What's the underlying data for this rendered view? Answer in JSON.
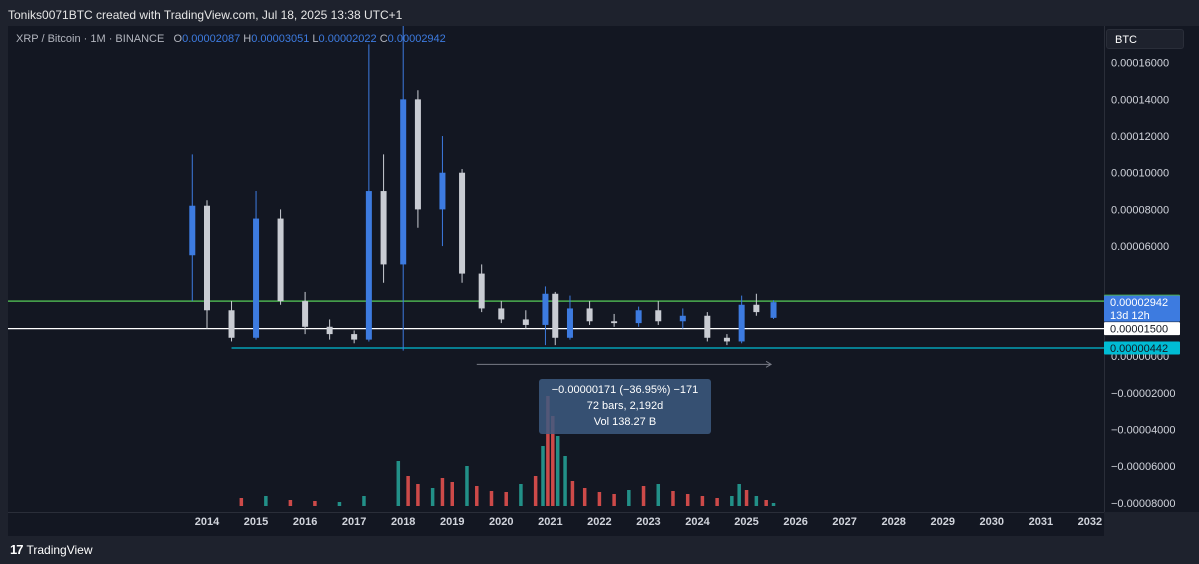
{
  "header": {
    "credit": "Toniks0071BTC created with TradingView.com, Jul 18, 2025 13:38 UTC+1"
  },
  "legend": {
    "symbol": "XRP / Bitcoin · 1M · BINANCE",
    "o_label": "O",
    "o_value": "0.00002087",
    "h_label": "H",
    "h_value": "0.00003051",
    "l_label": "L",
    "l_value": "0.00002022",
    "c_label": "C",
    "c_value": "0.00002942"
  },
  "currency_button": "BTC",
  "footer": {
    "brand": "TradingView",
    "logo": "17"
  },
  "colors": {
    "background": "#131722",
    "up_candle": "#3d7be0",
    "down_candle": "#c9ccd3",
    "volume_up": "#26a69a",
    "volume_down": "#ef5350",
    "resistance_line": "#4caf50",
    "mid_line": "#ffffff",
    "support_line": "#00bcd4"
  },
  "price_labels": {
    "resistance": "0.00003000",
    "current": "0.00002942",
    "countdown": "13d 12h",
    "mid": "0.00001500",
    "support": "0.00000442"
  },
  "measure_tooltip": {
    "line1": "−0.00000171 (−36.95%) −171",
    "line2": "72 bars, 2,192d",
    "line3": "Vol 138.27 B"
  },
  "chart_data": {
    "type": "candlestick",
    "symbol": "XRP / Bitcoin",
    "interval": "1M",
    "y_ticks": [
      "0.00016000",
      "0.00014000",
      "0.00012000",
      "0.00010000",
      "0.00008000",
      "0.00006000",
      "0.00000000",
      "−0.00002000",
      "−0.00004000",
      "−0.00006000",
      "−0.00008000"
    ],
    "y_tick_values": [
      0.00016,
      0.00014,
      0.00012,
      0.0001,
      8e-05,
      6e-05,
      0,
      -2e-05,
      -4e-05,
      -6e-05,
      -8e-05
    ],
    "x_ticks": [
      "2014",
      "2015",
      "2016",
      "2017",
      "2018",
      "2019",
      "2020",
      "2021",
      "2022",
      "2023",
      "2024",
      "2025",
      "2026",
      "2027",
      "2028",
      "2029",
      "2030",
      "2031",
      "2032"
    ],
    "ylim": [
      -8.5e-05,
      0.00018
    ],
    "horizontal_lines": [
      {
        "price": 3e-05,
        "color": "resistance"
      },
      {
        "price": 1.5e-05,
        "color": "mid"
      },
      {
        "price": 4.42e-06,
        "color": "support"
      }
    ],
    "measure": {
      "start_year": 2019.5,
      "end_year": 2025.5,
      "start_price": 4.6e-06,
      "end_price": 2.9e-06
    },
    "candles_yearly": [
      {
        "year": 2013.7,
        "open": 5.5e-05,
        "high": 0.00011,
        "low": 3e-05,
        "close": 8.2e-05
      },
      {
        "year": 2014.0,
        "open": 8.2e-05,
        "high": 8.5e-05,
        "low": 1.5e-05,
        "close": 2.5e-05
      },
      {
        "year": 2014.5,
        "open": 2.5e-05,
        "high": 3e-05,
        "low": 8e-06,
        "close": 1e-05
      },
      {
        "year": 2015.0,
        "open": 1e-05,
        "high": 9e-05,
        "low": 9e-06,
        "close": 7.5e-05
      },
      {
        "year": 2015.5,
        "open": 7.5e-05,
        "high": 8e-05,
        "low": 2.8e-05,
        "close": 3e-05
      },
      {
        "year": 2016.0,
        "open": 3e-05,
        "high": 3.5e-05,
        "low": 1.2e-05,
        "close": 1.6e-05
      },
      {
        "year": 2016.5,
        "open": 1.6e-05,
        "high": 2e-05,
        "low": 9e-06,
        "close": 1.2e-05
      },
      {
        "year": 2017.0,
        "open": 1.2e-05,
        "high": 1.4e-05,
        "low": 7e-06,
        "close": 9e-06
      },
      {
        "year": 2017.3,
        "open": 9e-06,
        "high": 0.00017,
        "low": 8e-06,
        "close": 9e-05
      },
      {
        "year": 2017.6,
        "open": 9e-05,
        "high": 0.00011,
        "low": 4e-05,
        "close": 5e-05
      },
      {
        "year": 2018.0,
        "open": 5e-05,
        "high": 0.00018,
        "low": 3e-06,
        "close": 0.00014
      },
      {
        "year": 2018.3,
        "open": 0.00014,
        "high": 0.000145,
        "low": 7e-05,
        "close": 8e-05
      },
      {
        "year": 2018.8,
        "open": 8e-05,
        "high": 0.00012,
        "low": 6e-05,
        "close": 0.0001
      },
      {
        "year": 2019.2,
        "open": 0.0001,
        "high": 0.000102,
        "low": 4e-05,
        "close": 4.5e-05
      },
      {
        "year": 2019.6,
        "open": 4.5e-05,
        "high": 5e-05,
        "low": 2.4e-05,
        "close": 2.6e-05
      },
      {
        "year": 2020.0,
        "open": 2.6e-05,
        "high": 3e-05,
        "low": 1.8e-05,
        "close": 2e-05
      },
      {
        "year": 2020.5,
        "open": 2e-05,
        "high": 2.5e-05,
        "low": 1.5e-05,
        "close": 1.7e-05
      },
      {
        "year": 2020.9,
        "open": 1.7e-05,
        "high": 3.8e-05,
        "low": 6e-06,
        "close": 3.4e-05
      },
      {
        "year": 2021.1,
        "open": 3.4e-05,
        "high": 3.5e-05,
        "low": 6e-06,
        "close": 1e-05
      },
      {
        "year": 2021.4,
        "open": 1e-05,
        "high": 3.3e-05,
        "low": 9e-06,
        "close": 2.6e-05
      },
      {
        "year": 2021.8,
        "open": 2.6e-05,
        "high": 3e-05,
        "low": 1.7e-05,
        "close": 1.9e-05
      },
      {
        "year": 2022.3,
        "open": 1.9e-05,
        "high": 2.3e-05,
        "low": 1.6e-05,
        "close": 1.8e-05
      },
      {
        "year": 2022.8,
        "open": 1.8e-05,
        "high": 2.7e-05,
        "low": 1.6e-05,
        "close": 2.5e-05
      },
      {
        "year": 2023.2,
        "open": 2.5e-05,
        "high": 3e-05,
        "low": 1.7e-05,
        "close": 1.9e-05
      },
      {
        "year": 2023.7,
        "open": 1.9e-05,
        "high": 2.6e-05,
        "low": 1.5e-05,
        "close": 2.2e-05
      },
      {
        "year": 2024.2,
        "open": 2.2e-05,
        "high": 2.4e-05,
        "low": 8e-06,
        "close": 1e-05
      },
      {
        "year": 2024.6,
        "open": 1e-05,
        "high": 1.2e-05,
        "low": 6e-06,
        "close": 8e-06
      },
      {
        "year": 2024.9,
        "open": 8e-06,
        "high": 3.3e-05,
        "low": 7e-06,
        "close": 2.8e-05
      },
      {
        "year": 2025.2,
        "open": 2.8e-05,
        "high": 3.4e-05,
        "low": 2.2e-05,
        "close": 2.4e-05
      },
      {
        "year": 2025.55,
        "open": 2.087e-05,
        "high": 3.051e-05,
        "low": 2.022e-05,
        "close": 2.942e-05
      }
    ]
  }
}
